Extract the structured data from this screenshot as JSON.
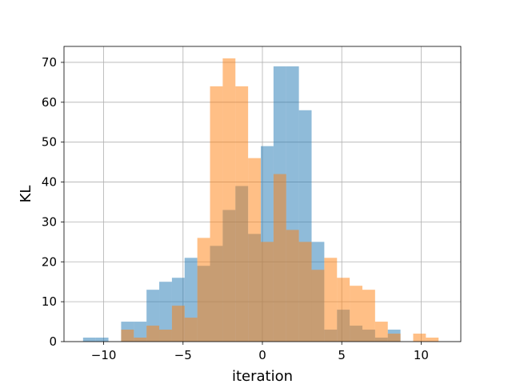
{
  "chart_data": {
    "type": "bar",
    "title": "",
    "xlabel": "iteration",
    "ylabel": "KL",
    "xlim": [
      -12.5,
      12.5
    ],
    "ylim": [
      0,
      74
    ],
    "xticks": [
      -10,
      -5,
      0,
      5,
      10
    ],
    "xtick_labels": [
      "−10",
      "−5",
      "0",
      "5",
      "10"
    ],
    "yticks": [
      0,
      10,
      20,
      30,
      40,
      50,
      60,
      70
    ],
    "ytick_labels": [
      "0",
      "10",
      "20",
      "30",
      "40",
      "50",
      "60",
      "70"
    ],
    "grid": true,
    "legend": null,
    "series": [
      {
        "color": "#1f77b4",
        "opacity": 0.5,
        "edges": [
          -11.3,
          -10.5,
          -9.7,
          -8.9,
          -8.1,
          -7.3,
          -6.5,
          -5.7,
          -4.9,
          -4.1,
          -3.3,
          -2.5,
          -1.7,
          -0.9,
          -0.1,
          0.7,
          1.5,
          2.3,
          3.1,
          3.9,
          4.7,
          5.5,
          6.3,
          7.1,
          7.9,
          8.7,
          9.5
        ],
        "counts": [
          1,
          1,
          0,
          5,
          5,
          13,
          15,
          16,
          21,
          19,
          24,
          33,
          39,
          27,
          49,
          69,
          69,
          58,
          25,
          3,
          8,
          4,
          3,
          1,
          3,
          0
        ]
      },
      {
        "color": "#ff7f0e",
        "opacity": 0.5,
        "edges": [
          -8.9,
          -8.1,
          -7.3,
          -6.5,
          -5.7,
          -4.9,
          -4.1,
          -3.3,
          -2.5,
          -1.7,
          -0.9,
          -0.1,
          0.7,
          1.5,
          2.3,
          3.1,
          3.9,
          4.7,
          5.5,
          6.3,
          7.1,
          7.9,
          8.7,
          9.5,
          10.3,
          11.1
        ],
        "counts": [
          3,
          1,
          4,
          3,
          9,
          6,
          26,
          64,
          71,
          64,
          46,
          25,
          42,
          28,
          25,
          18,
          21,
          16,
          14,
          13,
          5,
          2,
          0,
          2,
          1
        ]
      }
    ]
  }
}
